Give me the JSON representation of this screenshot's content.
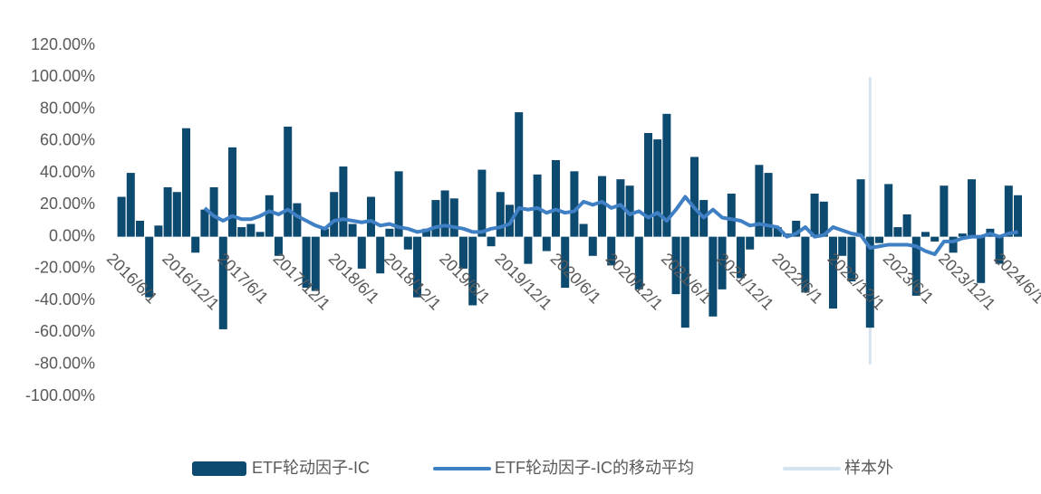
{
  "chart_data": {
    "type": "bar-line",
    "categories": [
      "2016/6/1",
      null,
      null,
      null,
      null,
      null,
      "2016/12/1",
      null,
      null,
      null,
      null,
      null,
      "2017/6/1",
      null,
      null,
      null,
      null,
      null,
      "2017/12/1",
      null,
      null,
      null,
      null,
      null,
      "2018/6/1",
      null,
      null,
      null,
      null,
      null,
      "2018/12/1",
      null,
      null,
      null,
      null,
      null,
      "2019/6/1",
      null,
      null,
      null,
      null,
      null,
      "2019/12/1",
      null,
      null,
      null,
      null,
      null,
      "2020/6/1",
      null,
      null,
      null,
      null,
      null,
      "2020/12/1",
      null,
      null,
      null,
      null,
      null,
      "2021/6/1",
      null,
      null,
      null,
      null,
      null,
      "2021/12/1",
      null,
      null,
      null,
      null,
      null,
      "2022/6/1",
      null,
      null,
      null,
      null,
      null,
      "2022/12/1",
      null,
      null,
      null,
      null,
      null,
      "2023/6/1",
      null,
      null,
      null,
      null,
      null,
      "2023/12/1",
      null,
      null,
      null,
      null,
      null,
      "2024/6/1",
      null
    ],
    "series": [
      {
        "name": "ETF轮动因子-IC",
        "type": "bar",
        "color": "#0d4a70",
        "values": [
          25,
          40,
          10,
          -38,
          7,
          31,
          28,
          68,
          -10,
          17,
          31,
          -58,
          56,
          6,
          8,
          3,
          26,
          -12,
          69,
          21,
          -32,
          -34,
          5,
          28,
          44,
          8,
          -20,
          25,
          -23,
          5,
          41,
          -8,
          -38,
          5,
          23,
          29,
          24,
          -20,
          -43,
          42,
          -6,
          28,
          20,
          78,
          -17,
          39,
          -9,
          48,
          -32,
          41,
          8,
          -12,
          38,
          -18,
          36,
          32,
          -33,
          65,
          61,
          77,
          -36,
          -57,
          50,
          23,
          -50,
          -33,
          27,
          -26,
          -8,
          45,
          40,
          6,
          2,
          10,
          -35,
          27,
          22,
          -45,
          -12,
          -28,
          36,
          -57,
          -4,
          33,
          6,
          14,
          -37,
          3,
          -3,
          32,
          -10,
          2,
          36,
          -29,
          5,
          -17,
          32,
          26
        ]
      },
      {
        "name": "ETF轮动因子-IC的移动平均",
        "type": "line",
        "color": "#3f7fc4",
        "values": [
          null,
          null,
          null,
          null,
          null,
          null,
          null,
          null,
          null,
          18,
          13,
          10,
          13,
          11,
          11,
          13,
          16,
          14,
          17,
          13,
          10,
          7,
          5,
          10,
          11,
          10,
          9,
          10,
          7,
          8,
          6,
          5,
          3,
          4,
          6,
          7,
          6,
          5,
          3,
          3,
          5,
          6,
          8,
          18,
          17,
          18,
          15,
          17,
          15,
          16,
          22,
          20,
          22,
          18,
          20,
          14,
          16,
          12,
          15,
          10,
          17,
          25,
          18,
          12,
          17,
          12,
          11,
          10,
          7,
          8,
          7,
          6,
          0,
          2,
          6,
          0,
          1,
          6,
          4,
          2,
          1,
          -7,
          -6,
          -5,
          -5,
          -5,
          -6,
          -9,
          -11,
          -3,
          -3,
          -1,
          0,
          0,
          2,
          0,
          2,
          3
        ]
      },
      {
        "name": "样本外",
        "type": "vline",
        "color": "#d5e3f0",
        "values": [
          null,
          null,
          null,
          null,
          null,
          null,
          null,
          null,
          null,
          null,
          null,
          null,
          null,
          null,
          null,
          null,
          null,
          null,
          null,
          null,
          null,
          null,
          null,
          null,
          null,
          null,
          null,
          null,
          null,
          null,
          null,
          null,
          null,
          null,
          null,
          null,
          null,
          null,
          null,
          null,
          null,
          null,
          null,
          null,
          null,
          null,
          null,
          null,
          null,
          null,
          null,
          null,
          null,
          null,
          null,
          null,
          null,
          null,
          null,
          null,
          null,
          null,
          null,
          null,
          null,
          null,
          null,
          null,
          null,
          null,
          null,
          null,
          null,
          null,
          null,
          null,
          null,
          null,
          null,
          null,
          null,
          100,
          null,
          null,
          null,
          null,
          null,
          null,
          null,
          null,
          null,
          null,
          null,
          null,
          null,
          null,
          null,
          null
        ],
        "low": -80
      }
    ],
    "ylim": [
      -100,
      120
    ],
    "yticks": [
      {
        "value": -100,
        "label": "-100.00%"
      },
      {
        "value": -80,
        "label": "-80.00%"
      },
      {
        "value": -60,
        "label": "-60.00%"
      },
      {
        "value": -40,
        "label": "-40.00%"
      },
      {
        "value": -20,
        "label": "-20.00%"
      },
      {
        "value": 0,
        "label": "0.00%"
      },
      {
        "value": 20,
        "label": "20.00%"
      },
      {
        "value": 40,
        "label": "40.00%"
      },
      {
        "value": 60,
        "label": "60.00%"
      },
      {
        "value": 80,
        "label": "80.00%"
      },
      {
        "value": 100,
        "label": "100.00%"
      },
      {
        "value": 120,
        "label": "120.00%"
      }
    ],
    "grid": false,
    "legend": "bottom"
  }
}
